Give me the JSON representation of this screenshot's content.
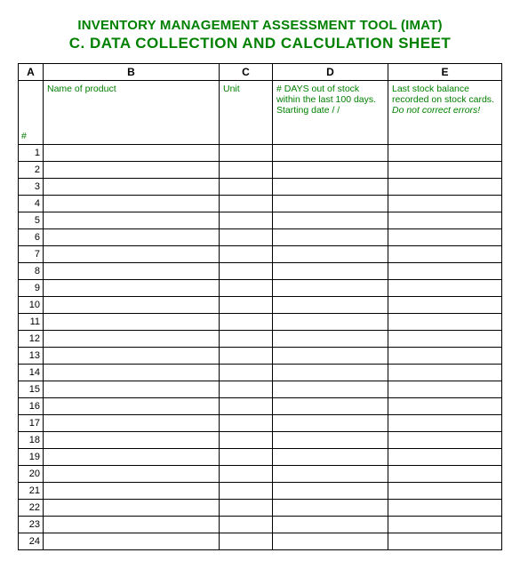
{
  "title_line1": "INVENTORY MANAGEMENT ASSESSMENT TOOL (IMAT)",
  "title_line2": "C. DATA COLLECTION AND CALCULATION SHEET",
  "columns": {
    "letters": [
      "A",
      "B",
      "C",
      "D",
      "E"
    ],
    "hash": "#",
    "b_header": "Name of product",
    "c_header": "Unit",
    "d_header": "# DAYS out of stock within the last 100 days. Starting date    /   /",
    "e_header_plain": "Last stock balance recorded on stock cards. ",
    "e_header_italic": "Do not correct errors!"
  },
  "row_count": 24,
  "colors": {
    "title": "#008000",
    "header_text": "#008000",
    "border": "#000000",
    "background": "#ffffff"
  }
}
